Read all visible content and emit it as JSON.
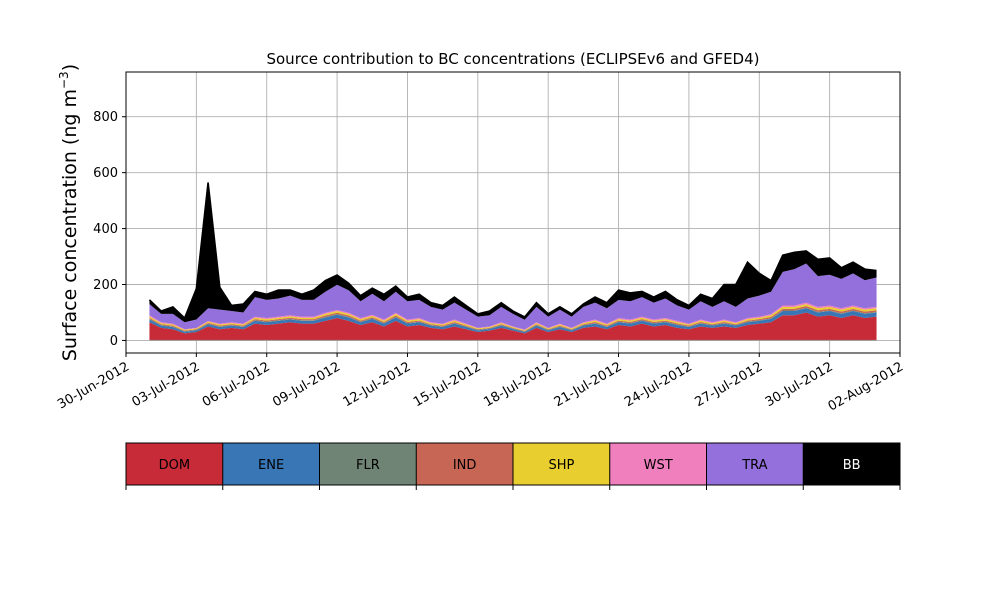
{
  "chart_data": {
    "type": "area",
    "stacked": true,
    "title": "Source contribution to BC concentrations (ECLIPSEv6 and GFED4)",
    "ylabel": "Surface concentration (ng m",
    "ylabel_exponent": "−3",
    "ylabel_suffix": ")",
    "xlim": [
      "2012-06-30",
      "2012-08-02"
    ],
    "ylim": [
      -45,
      960
    ],
    "grid": true,
    "xticks": [
      "2012-06-30",
      "2012-07-03",
      "2012-07-06",
      "2012-07-09",
      "2012-07-12",
      "2012-07-15",
      "2012-07-18",
      "2012-07-21",
      "2012-07-24",
      "2012-07-27",
      "2012-07-30",
      "2012-08-02"
    ],
    "xtick_labels": [
      "30-Jun-2012",
      "03-Jul-2012",
      "06-Jul-2012",
      "09-Jul-2012",
      "12-Jul-2012",
      "15-Jul-2012",
      "18-Jul-2012",
      "21-Jul-2012",
      "24-Jul-2012",
      "27-Jul-2012",
      "30-Jul-2012",
      "02-Aug-2012"
    ],
    "yticks": [
      0,
      200,
      400,
      600,
      800
    ],
    "ytick_labels": [
      "0",
      "200",
      "400",
      "600",
      "800"
    ],
    "legend_placement": "bottom",
    "x": [
      "2012-07-01T00:00",
      "2012-07-01T12:00",
      "2012-07-02T00:00",
      "2012-07-02T12:00",
      "2012-07-03T00:00",
      "2012-07-03T12:00",
      "2012-07-04T00:00",
      "2012-07-04T12:00",
      "2012-07-05T00:00",
      "2012-07-05T12:00",
      "2012-07-06T00:00",
      "2012-07-06T12:00",
      "2012-07-07T00:00",
      "2012-07-07T12:00",
      "2012-07-08T00:00",
      "2012-07-08T12:00",
      "2012-07-09T00:00",
      "2012-07-09T12:00",
      "2012-07-10T00:00",
      "2012-07-10T12:00",
      "2012-07-11T00:00",
      "2012-07-11T12:00",
      "2012-07-12T00:00",
      "2012-07-12T12:00",
      "2012-07-13T00:00",
      "2012-07-13T12:00",
      "2012-07-14T00:00",
      "2012-07-14T12:00",
      "2012-07-15T00:00",
      "2012-07-15T12:00",
      "2012-07-16T00:00",
      "2012-07-16T12:00",
      "2012-07-17T00:00",
      "2012-07-17T12:00",
      "2012-07-18T00:00",
      "2012-07-18T12:00",
      "2012-07-19T00:00",
      "2012-07-19T12:00",
      "2012-07-20T00:00",
      "2012-07-20T12:00",
      "2012-07-21T00:00",
      "2012-07-21T12:00",
      "2012-07-22T00:00",
      "2012-07-22T12:00",
      "2012-07-23T00:00",
      "2012-07-23T12:00",
      "2012-07-24T00:00",
      "2012-07-24T12:00",
      "2012-07-25T00:00",
      "2012-07-25T12:00",
      "2012-07-26T00:00",
      "2012-07-26T12:00",
      "2012-07-27T00:00",
      "2012-07-27T12:00",
      "2012-07-28T00:00",
      "2012-07-28T12:00",
      "2012-07-29T00:00",
      "2012-07-29T12:00",
      "2012-07-30T00:00",
      "2012-07-30T12:00",
      "2012-07-31T00:00",
      "2012-07-31T12:00",
      "2012-08-01T00:00"
    ],
    "series": [
      {
        "name": "DOM",
        "color": "#c62b37",
        "values": [
          65,
          45,
          40,
          25,
          30,
          50,
          40,
          45,
          40,
          60,
          55,
          60,
          65,
          60,
          60,
          70,
          80,
          70,
          55,
          65,
          50,
          70,
          50,
          55,
          45,
          40,
          50,
          40,
          30,
          35,
          45,
          35,
          25,
          45,
          30,
          40,
          30,
          45,
          50,
          40,
          55,
          50,
          60,
          50,
          55,
          45,
          40,
          50,
          45,
          50,
          45,
          55,
          60,
          65,
          90,
          90,
          100,
          85,
          90,
          80,
          90,
          80,
          85
        ]
      },
      {
        "name": "ENE",
        "color": "#3876b5",
        "values": [
          10,
          8,
          8,
          6,
          6,
          8,
          8,
          8,
          8,
          10,
          10,
          10,
          10,
          10,
          10,
          12,
          12,
          12,
          10,
          12,
          10,
          12,
          10,
          10,
          8,
          8,
          10,
          8,
          6,
          6,
          8,
          6,
          5,
          8,
          6,
          8,
          6,
          8,
          10,
          8,
          10,
          10,
          10,
          10,
          10,
          10,
          8,
          10,
          8,
          10,
          8,
          10,
          10,
          12,
          15,
          15,
          15,
          15,
          15,
          15,
          15,
          15,
          15
        ]
      },
      {
        "name": "FLR",
        "color": "#6f8474",
        "values": [
          2,
          2,
          2,
          2,
          2,
          2,
          2,
          2,
          2,
          2,
          2,
          2,
          2,
          2,
          2,
          2,
          2,
          2,
          2,
          2,
          2,
          2,
          2,
          2,
          2,
          2,
          2,
          2,
          2,
          2,
          2,
          2,
          2,
          2,
          2,
          2,
          2,
          2,
          2,
          2,
          2,
          2,
          2,
          2,
          2,
          2,
          2,
          2,
          2,
          2,
          2,
          2,
          2,
          2,
          2,
          2,
          2,
          2,
          2,
          2,
          2,
          2,
          2
        ]
      },
      {
        "name": "IND",
        "color": "#c76655",
        "values": [
          4,
          3,
          3,
          2,
          2,
          3,
          3,
          3,
          3,
          4,
          4,
          4,
          4,
          4,
          4,
          5,
          5,
          5,
          4,
          4,
          4,
          5,
          4,
          4,
          3,
          3,
          4,
          3,
          2,
          2,
          3,
          2,
          2,
          3,
          2,
          3,
          2,
          3,
          4,
          3,
          4,
          4,
          4,
          4,
          4,
          4,
          3,
          4,
          3,
          4,
          3,
          4,
          4,
          5,
          6,
          6,
          6,
          6,
          6,
          6,
          6,
          6,
          6
        ]
      },
      {
        "name": "SHP",
        "color": "#e8cf2f",
        "values": [
          5,
          4,
          4,
          3,
          3,
          4,
          4,
          4,
          4,
          5,
          5,
          5,
          5,
          5,
          5,
          6,
          6,
          6,
          5,
          5,
          5,
          6,
          5,
          5,
          4,
          4,
          5,
          4,
          3,
          3,
          4,
          3,
          3,
          4,
          3,
          4,
          3,
          4,
          5,
          4,
          5,
          5,
          5,
          5,
          5,
          5,
          4,
          5,
          4,
          5,
          4,
          5,
          5,
          6,
          7,
          7,
          7,
          7,
          7,
          7,
          7,
          7,
          7
        ]
      },
      {
        "name": "WST",
        "color": "#f07fbd",
        "values": [
          4,
          3,
          3,
          2,
          2,
          3,
          3,
          3,
          3,
          4,
          4,
          4,
          4,
          4,
          4,
          4,
          4,
          4,
          4,
          4,
          4,
          4,
          4,
          4,
          3,
          3,
          4,
          3,
          2,
          2,
          3,
          2,
          2,
          3,
          2,
          3,
          2,
          3,
          4,
          3,
          4,
          4,
          4,
          4,
          4,
          4,
          3,
          4,
          3,
          4,
          3,
          4,
          4,
          4,
          5,
          5,
          5,
          5,
          5,
          5,
          5,
          5,
          5
        ]
      },
      {
        "name": "TRA",
        "color": "#9370db",
        "values": [
          40,
          30,
          35,
          25,
          30,
          45,
          50,
          40,
          40,
          70,
          65,
          65,
          70,
          60,
          60,
          75,
          90,
          80,
          60,
          75,
          65,
          75,
          65,
          65,
          55,
          50,
          60,
          50,
          40,
          40,
          55,
          45,
          35,
          55,
          40,
          50,
          40,
          55,
          60,
          55,
          65,
          65,
          70,
          60,
          70,
          55,
          50,
          65,
          55,
          65,
          55,
          70,
          75,
          80,
          120,
          130,
          140,
          110,
          110,
          105,
          115,
          100,
          105
        ]
      },
      {
        "name": "BB",
        "color": "#000000",
        "values": [
          15,
          10,
          25,
          15,
          110,
          450,
          80,
          20,
          30,
          20,
          20,
          30,
          20,
          20,
          35,
          40,
          35,
          25,
          20,
          20,
          25,
          20,
          15,
          20,
          15,
          15,
          20,
          15,
          10,
          15,
          15,
          10,
          10,
          15,
          10,
          10,
          10,
          10,
          20,
          20,
          35,
          30,
          20,
          20,
          25,
          20,
          15,
          25,
          30,
          60,
          80,
          130,
          80,
          40,
          60,
          60,
          45,
          60,
          60,
          40,
          40,
          40,
          25
        ]
      }
    ]
  }
}
